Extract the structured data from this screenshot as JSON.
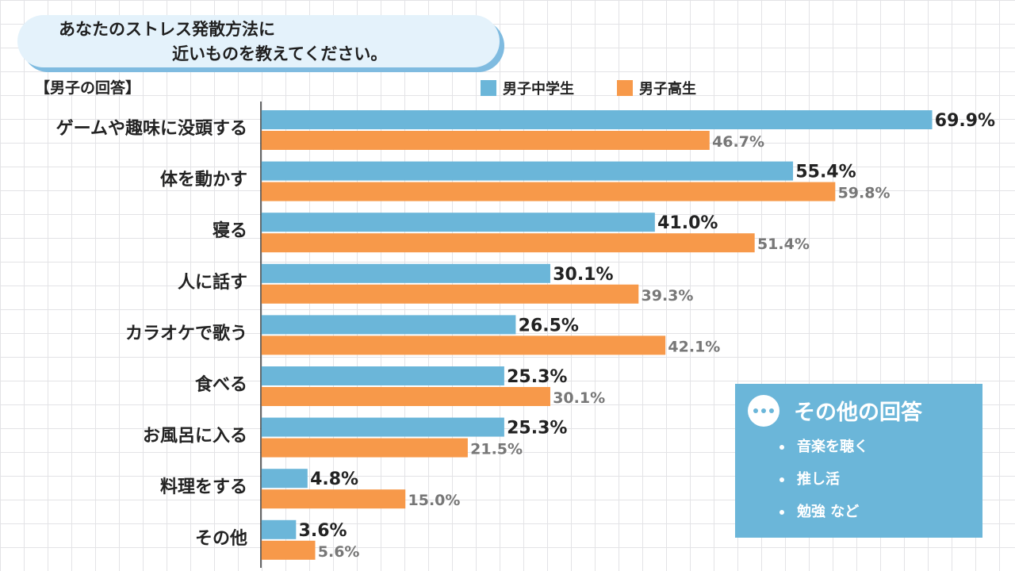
{
  "header": {
    "question_line1": "あなたのストレス発散方法に",
    "question_line2": "近いものを教えてください。",
    "answer_group_label": "【男子の回答】"
  },
  "colors": {
    "junior_high": "#6bb6d9",
    "high_school": "#f7994a"
  },
  "chart_data": {
    "type": "bar",
    "orientation": "horizontal",
    "categories": [
      "ゲームや趣味に没頭する",
      "体を動かす",
      "寝る",
      "人に話す",
      "カラオケで歌う",
      "食べる",
      "お風呂に入る",
      "料理をする",
      "その他"
    ],
    "series": [
      {
        "name": "男子中学生",
        "values": [
          69.9,
          55.4,
          41.0,
          30.1,
          26.5,
          25.3,
          25.3,
          4.8,
          3.6
        ]
      },
      {
        "name": "男子高生",
        "values": [
          46.7,
          59.8,
          51.4,
          39.3,
          42.1,
          30.1,
          21.5,
          15.0,
          5.6
        ]
      }
    ],
    "labels": [
      [
        "69.9%",
        "55.4%",
        "41.0%",
        "30.1%",
        "26.5%",
        "25.3%",
        "25.3%",
        "4.8%",
        "3.6%"
      ],
      [
        "46.7%",
        "59.8%",
        "51.4%",
        "39.3%",
        "42.1%",
        "30.1%",
        "21.5%",
        "15.0%",
        "5.6%"
      ]
    ],
    "xlim": [
      0,
      100
    ],
    "legend": "top"
  },
  "other_answers": {
    "title": "その他の回答",
    "items": [
      "音楽を聴く",
      "推し活",
      "勉強 など"
    ]
  }
}
